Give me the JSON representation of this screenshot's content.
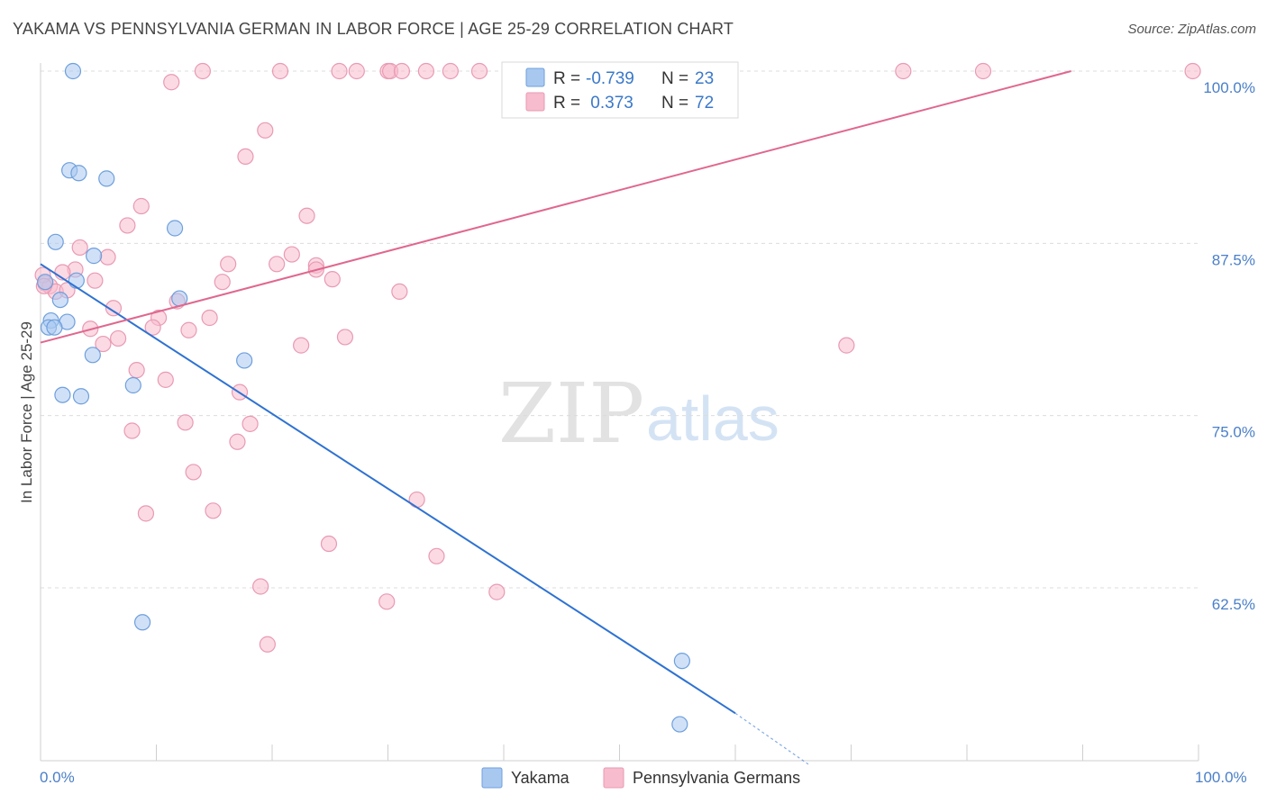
{
  "title": "YAKAMA VS PENNSYLVANIA GERMAN IN LABOR FORCE | AGE 25-29 CORRELATION CHART",
  "source": "Source: ZipAtlas.com",
  "watermark": {
    "zip": "ZIP",
    "atlas": "atlas"
  },
  "legend_box": {
    "rows": [
      {
        "r_label": "R =",
        "r_value": "-0.739",
        "n_label": "N =",
        "n_value": "23",
        "color": "#a9c8f0"
      },
      {
        "r_label": "R =",
        "r_value": " 0.373",
        "n_label": "N =",
        "n_value": "72",
        "color": "#f7bccd"
      }
    ]
  },
  "bottom_legend": [
    "Yakama",
    "Pennsylvania Germans"
  ],
  "colors": {
    "yakama_fill": "#a9c8f0",
    "yakama_stroke": "#6e9fdc",
    "yakama_line": "#2e72d2",
    "pa_fill": "#f7bccd",
    "pa_stroke": "#e99ab3",
    "pa_line": "#e0678e",
    "grid": "#dcdcdc",
    "tick_label": "#4a7fc8"
  },
  "chart_data": {
    "type": "scatter",
    "title": "YAKAMA VS PENNSYLVANIA GERMAN IN LABOR FORCE | AGE 25-29 CORRELATION CHART",
    "xlabel": "",
    "ylabel": "In Labor Force | Age 25-29",
    "xlim": [
      0,
      100
    ],
    "ylim": [
      50,
      100
    ],
    "x_tick_labels": [
      "0.0%",
      "100.0%"
    ],
    "y_ticks": [
      62.5,
      75.0,
      87.5,
      100.0
    ],
    "y_tick_labels": [
      "62.5%",
      "75.0%",
      "87.5%",
      "100.0%"
    ],
    "grid": true,
    "legend_position": "top-center",
    "series": [
      {
        "name": "Yakama",
        "r": -0.739,
        "n": 23,
        "trend": {
          "x": [
            0.0,
            60.0
          ],
          "y": [
            86.0,
            53.4
          ],
          "dashed_to": [
            66.3,
            49.7
          ]
        },
        "points": [
          [
            2.8,
            100.0
          ],
          [
            2.5,
            92.8
          ],
          [
            3.3,
            92.6
          ],
          [
            5.7,
            92.2
          ],
          [
            11.6,
            88.6
          ],
          [
            1.3,
            87.6
          ],
          [
            4.6,
            86.6
          ],
          [
            3.1,
            84.8
          ],
          [
            0.4,
            84.7
          ],
          [
            1.7,
            83.4
          ],
          [
            12.0,
            83.5
          ],
          [
            0.9,
            81.9
          ],
          [
            2.3,
            81.8
          ],
          [
            0.7,
            81.4
          ],
          [
            1.2,
            81.4
          ],
          [
            4.5,
            79.4
          ],
          [
            17.6,
            79.0
          ],
          [
            8.0,
            77.2
          ],
          [
            1.9,
            76.5
          ],
          [
            3.5,
            76.4
          ],
          [
            8.8,
            60.0
          ],
          [
            55.4,
            57.2
          ],
          [
            55.2,
            52.6
          ]
        ]
      },
      {
        "name": "Pennsylvania Germans",
        "r": 0.373,
        "n": 72,
        "trend": {
          "x": [
            0.0,
            89.0
          ],
          "y": [
            80.3,
            100.0
          ]
        },
        "points": [
          [
            14.0,
            100.0
          ],
          [
            20.7,
            100.0
          ],
          [
            25.8,
            100.0
          ],
          [
            27.3,
            100.0
          ],
          [
            30.0,
            100.0
          ],
          [
            30.2,
            100.0
          ],
          [
            31.2,
            100.0
          ],
          [
            33.3,
            100.0
          ],
          [
            35.4,
            100.0
          ],
          [
            37.9,
            100.0
          ],
          [
            41.3,
            100.0
          ],
          [
            43.3,
            100.0
          ],
          [
            46.6,
            100.0
          ],
          [
            55.6,
            100.0
          ],
          [
            59.1,
            100.0
          ],
          [
            74.5,
            100.0
          ],
          [
            81.4,
            100.0
          ],
          [
            99.5,
            100.0
          ],
          [
            11.3,
            99.2
          ],
          [
            19.4,
            95.7
          ],
          [
            17.7,
            93.8
          ],
          [
            8.7,
            90.2
          ],
          [
            23.0,
            89.5
          ],
          [
            7.5,
            88.8
          ],
          [
            3.4,
            87.2
          ],
          [
            5.8,
            86.5
          ],
          [
            21.7,
            86.7
          ],
          [
            16.2,
            86.0
          ],
          [
            20.4,
            86.0
          ],
          [
            23.8,
            85.9
          ],
          [
            3.0,
            85.6
          ],
          [
            1.9,
            85.4
          ],
          [
            23.8,
            85.6
          ],
          [
            4.7,
            84.8
          ],
          [
            15.7,
            84.7
          ],
          [
            25.2,
            84.9
          ],
          [
            0.4,
            84.6
          ],
          [
            0.8,
            84.4
          ],
          [
            1.3,
            84.0
          ],
          [
            2.3,
            84.1
          ],
          [
            31.0,
            84.0
          ],
          [
            11.8,
            83.3
          ],
          [
            6.3,
            82.8
          ],
          [
            10.2,
            82.1
          ],
          [
            14.6,
            82.1
          ],
          [
            9.7,
            81.4
          ],
          [
            4.3,
            81.3
          ],
          [
            12.8,
            81.2
          ],
          [
            26.3,
            80.7
          ],
          [
            6.7,
            80.6
          ],
          [
            5.4,
            80.2
          ],
          [
            22.5,
            80.1
          ],
          [
            69.6,
            80.1
          ],
          [
            8.3,
            78.3
          ],
          [
            10.8,
            77.6
          ],
          [
            17.2,
            76.7
          ],
          [
            12.5,
            74.5
          ],
          [
            18.1,
            74.4
          ],
          [
            7.9,
            73.9
          ],
          [
            17.0,
            73.1
          ],
          [
            13.2,
            70.9
          ],
          [
            32.5,
            68.9
          ],
          [
            9.1,
            67.9
          ],
          [
            14.9,
            68.1
          ],
          [
            24.9,
            65.7
          ],
          [
            34.2,
            64.8
          ],
          [
            19.0,
            62.6
          ],
          [
            39.4,
            62.2
          ],
          [
            29.9,
            61.5
          ],
          [
            19.6,
            58.4
          ],
          [
            0.2,
            85.2
          ],
          [
            0.3,
            84.4
          ]
        ]
      }
    ]
  }
}
